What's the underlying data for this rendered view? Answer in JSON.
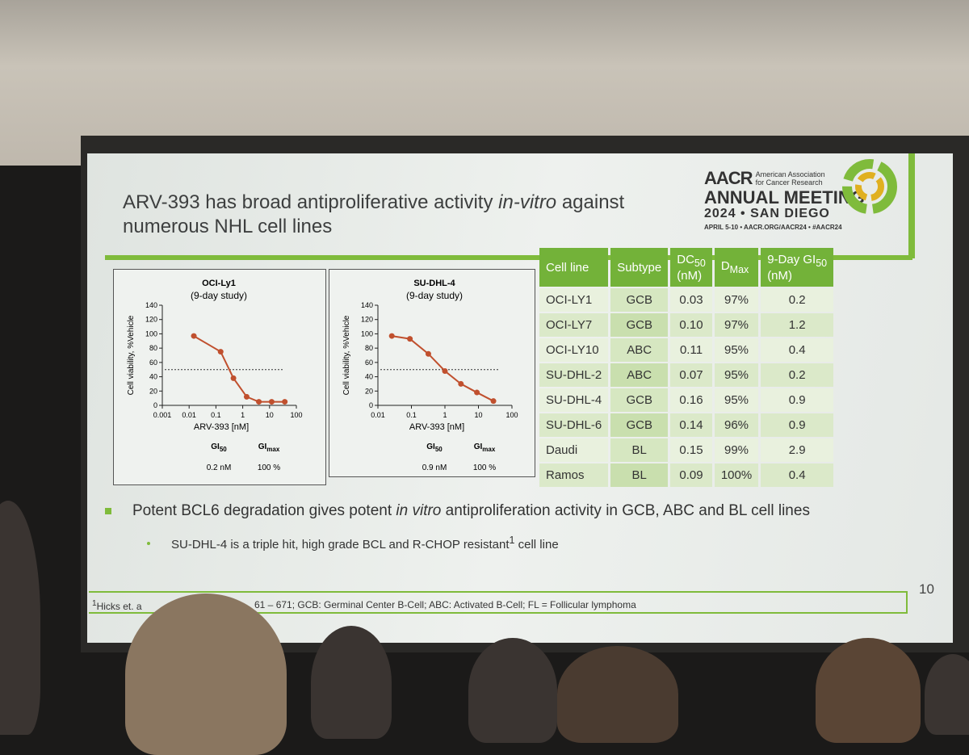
{
  "slide": {
    "title": {
      "before": "ARV-393 has broad antiproliferative activity ",
      "italic": "in-vitro",
      "after": " against numerous NHL cell lines"
    },
    "logo": {
      "org": "AACR",
      "org_full": "American Association for Cancer Research",
      "event": "ANNUAL MEETING",
      "edition": "2024 • SAN DIEGO",
      "details": "APRIL 5-10 • AACR.ORG/AACR24 • #AACR24"
    },
    "table": {
      "header": [
        {
          "text": "Cell line"
        },
        {
          "text": "Subtype"
        },
        {
          "text": "DC",
          "sub": "50",
          "after": "(nM)"
        },
        {
          "text": "D",
          "sub": "Max"
        },
        {
          "text": "9-Day GI",
          "sub": "50",
          "after": "(nM)"
        }
      ],
      "rows": [
        [
          "OCI-LY1",
          "GCB",
          "0.03",
          "97%",
          "0.2"
        ],
        [
          "OCI-LY7",
          "GCB",
          "0.10",
          "97%",
          "1.2"
        ],
        [
          "OCI-LY10",
          "ABC",
          "0.11",
          "95%",
          "0.4"
        ],
        [
          "SU-DHL-2",
          "ABC",
          "0.07",
          "95%",
          "0.2"
        ],
        [
          "SU-DHL-4",
          "GCB",
          "0.16",
          "95%",
          "0.9"
        ],
        [
          "SU-DHL-6",
          "GCB",
          "0.14",
          "96%",
          "0.9"
        ],
        [
          "Daudi",
          "BL",
          "0.15",
          "99%",
          "2.9"
        ],
        [
          "Ramos",
          "BL",
          "0.09",
          "100%",
          "0.4"
        ]
      ]
    },
    "bullets": [
      {
        "before": "Potent BCL6 degradation gives potent ",
        "italic": "in vitro",
        "after": " antiproliferation activity in GCB, ABC and BL cell lines"
      },
      {
        "before": "SU-DHL-4 is a triple hit, high grade BCL and R-CHOP resistant",
        "sup": "1",
        "after": " cell line"
      }
    ],
    "footnote": {
      "sup": "1",
      "start": "Hicks et. a",
      "end": "61 – 671; GCB: Germinal Center B-Cell; ABC: Activated B-Cell; FL = Follicular lymphoma"
    },
    "page_number": "10"
  },
  "chart_data": [
    {
      "type": "line",
      "title": "OCI-Ly1",
      "subtitle": "(9-day study)",
      "x_label": "ARV-393 [nM]",
      "y_label": "Cell viability, %Vehicle",
      "x": [
        0.015,
        0.15,
        0.45,
        1.4,
        4,
        12,
        37
      ],
      "values": [
        97,
        75,
        38,
        12,
        5,
        5,
        5
      ],
      "color": "#c0502e",
      "log_x": true,
      "xlim": [
        0.001,
        100
      ],
      "xticks": [
        0.001,
        0.01,
        0.1,
        1,
        10,
        100
      ],
      "ylim": [
        0,
        140
      ],
      "yticks": [
        0,
        20,
        40,
        60,
        80,
        100,
        120,
        140
      ],
      "reference_line": 50,
      "stats": [
        {
          "label": "GI",
          "sub": "50",
          "value": "0.2 nM"
        },
        {
          "label": "GI",
          "sub": "max",
          "value": "100 %"
        }
      ]
    },
    {
      "type": "line",
      "title": "SU-DHL-4",
      "subtitle": "(9-day study)",
      "x_label": "ARV-393 [nM]",
      "y_label": "Cell viability, %Vehicle",
      "x": [
        0.026,
        0.09,
        0.32,
        1,
        3,
        9,
        28
      ],
      "values": [
        97,
        93,
        72,
        48,
        30,
        18,
        6
      ],
      "color": "#c0502e",
      "log_x": true,
      "xlim": [
        0.01,
        100
      ],
      "xticks": [
        0.01,
        0.1,
        1,
        10,
        100
      ],
      "ylim": [
        0,
        140
      ],
      "yticks": [
        0,
        20,
        40,
        60,
        80,
        100,
        120,
        140
      ],
      "reference_line": 50,
      "stats": [
        {
          "label": "GI",
          "sub": "50",
          "value": "0.9 nM"
        },
        {
          "label": "GI",
          "sub": "max",
          "value": "100 %"
        }
      ]
    }
  ]
}
